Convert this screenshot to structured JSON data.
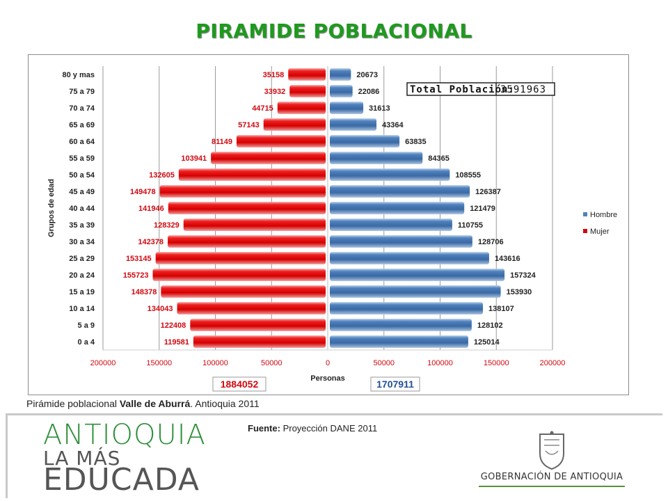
{
  "title": "PIRAMIDE POBLACIONAL",
  "caption": {
    "prefix": "Pirámide poblacional",
    "bold": "Valle de Aburrá",
    "suffix": ".  Antioquia 2011"
  },
  "fuente": {
    "label": "Fuente:",
    "text": "Proyección DANE 2011"
  },
  "logo_left": {
    "line1": "ANTIOQUIA",
    "line2": "LA MÁS",
    "line3": "EDUCADA"
  },
  "logo_right": {
    "text": "GOBERNACIÓN DE ANTIOQUIA"
  },
  "colors": {
    "mujer": "#e3060b",
    "hombre": "#4f81bd",
    "title": "#1e9a1e",
    "label_mujer": "#d0080f"
  },
  "chart_data": {
    "type": "bar",
    "orientation": "horizontal-pyramid",
    "categories": [
      "80 y mas",
      "75 a 79",
      "70 a 74",
      "65 a 69",
      "60 a 64",
      "55 a 59",
      "50 a 54",
      "45 a 49",
      "40 a 44",
      "35 a 39",
      "30 a 34",
      "25 a 29",
      "20 a 24",
      "15 a 19",
      "10 a 14",
      "5 a 9",
      "0 a 4"
    ],
    "series": [
      {
        "name": "Hombre",
        "values": [
          20673,
          22086,
          31613,
          43364,
          63835,
          84365,
          108555,
          126387,
          121479,
          110755,
          128706,
          143616,
          157324,
          153930,
          138107,
          128102,
          125014
        ]
      },
      {
        "name": "Mujer",
        "values": [
          35158,
          33932,
          44715,
          57143,
          81149,
          103941,
          132605,
          149478,
          141946,
          128329,
          142378,
          153145,
          155723,
          148378,
          134043,
          122408,
          119581
        ]
      }
    ],
    "xlabel": "Personas",
    "ylabel": "Grupos de edad",
    "xticks": [
      "200000",
      "150000",
      "100000",
      "50000",
      "0",
      "50000",
      "100000",
      "150000",
      "200000"
    ],
    "xlim": [
      -200000,
      200000
    ],
    "legend": "right",
    "total_label": "Total Población:",
    "total_value": "3591963",
    "total_mujer": "1884052",
    "total_hombre": "1707911"
  }
}
